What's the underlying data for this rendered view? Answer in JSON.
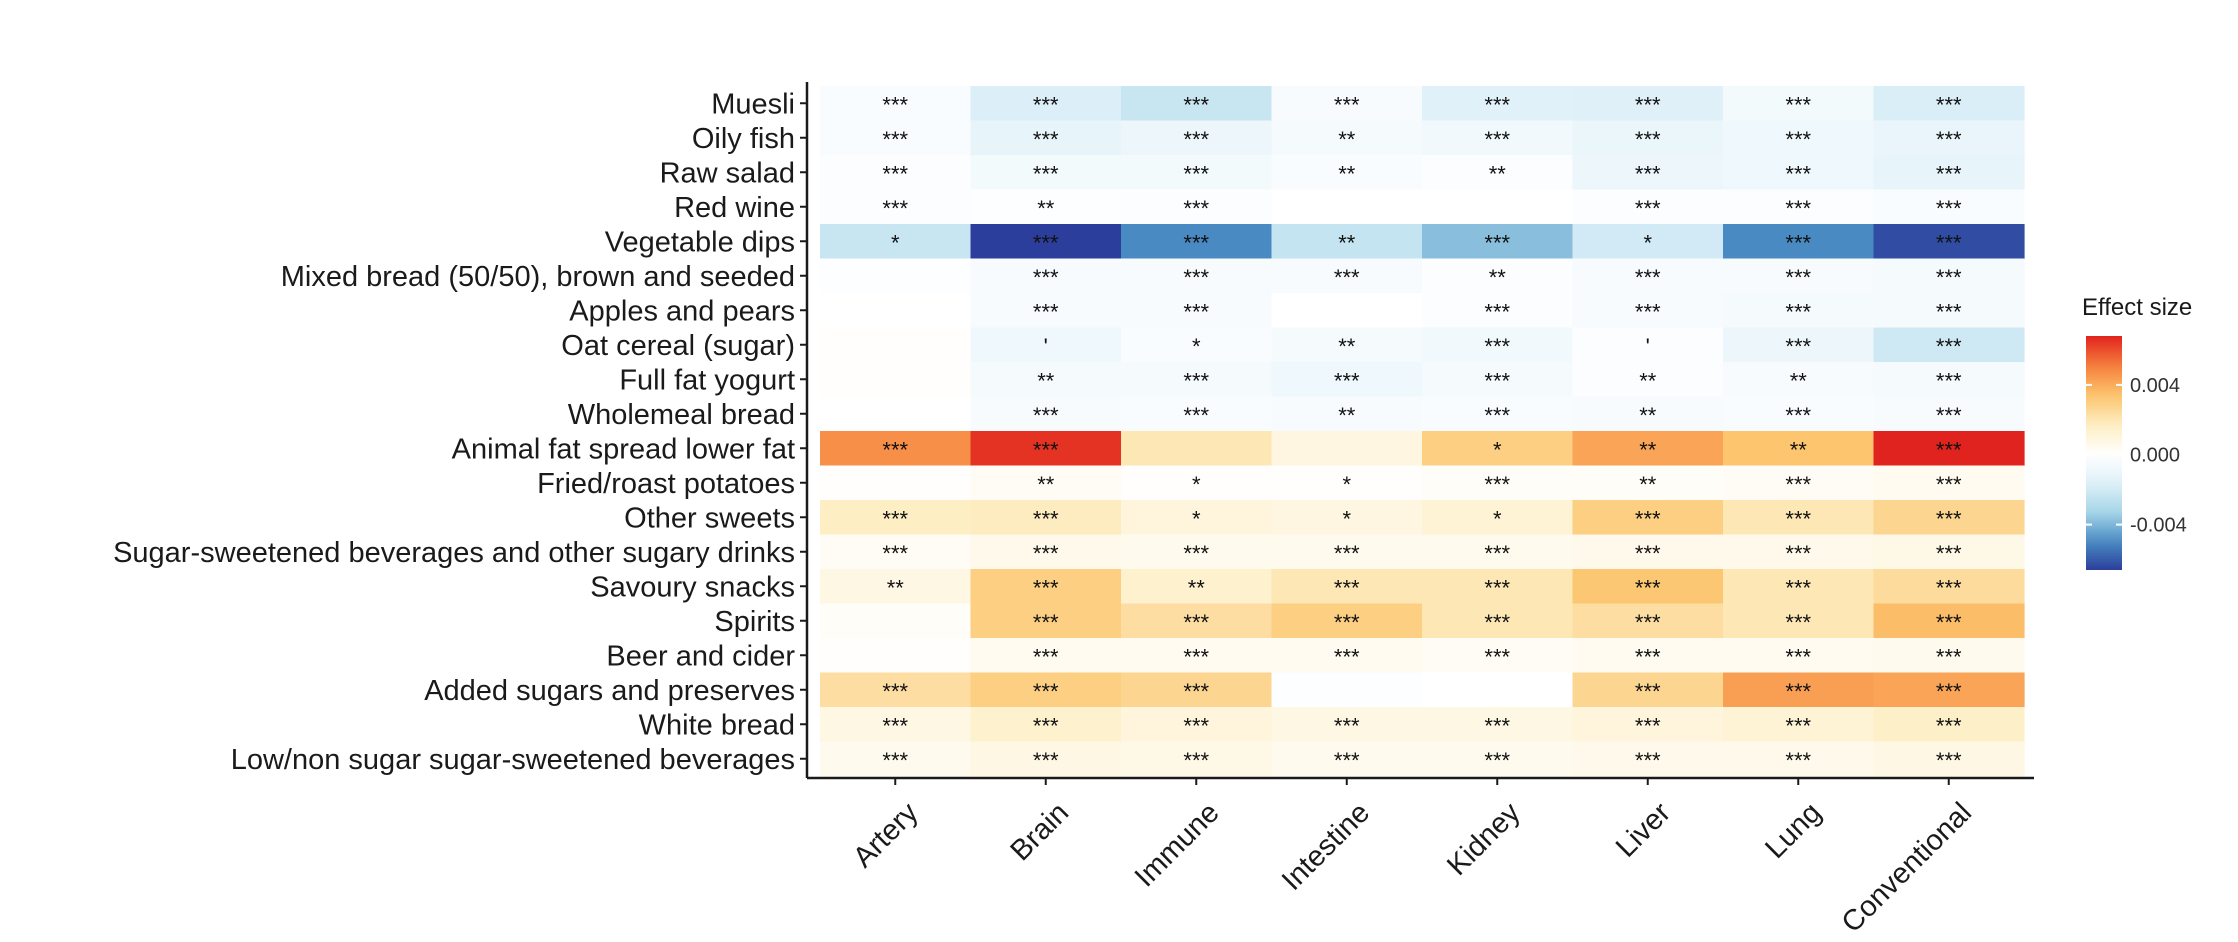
{
  "chart_data": {
    "type": "heatmap",
    "title": "",
    "xlabel": "",
    "ylabel": "",
    "rows": [
      "Muesli",
      "Oily fish",
      "Raw salad",
      "Red wine",
      "Vegetable dips",
      "Mixed bread (50/50), brown and seeded",
      "Apples and pears",
      "Oat cereal (sugar)",
      "Full fat yogurt",
      "Wholemeal bread",
      "Animal fat spread lower fat",
      "Fried/roast potatoes",
      "Other sweets",
      "Sugar-sweetened beverages and other sugary drinks",
      "Savoury snacks",
      "Spirits",
      "Beer and cider",
      "Added sugars and preserves",
      "White bread",
      "Low/non sugar sugar-sweetened beverages"
    ],
    "columns": [
      "Artery",
      "Brain",
      "Immune",
      "Intestine",
      "Kidney",
      "Liver",
      "Lung",
      "Conventional"
    ],
    "values": [
      [
        -0.0003,
        -0.0017,
        -0.0023,
        -0.0004,
        -0.0015,
        -0.0016,
        -0.0006,
        -0.0018
      ],
      [
        -0.0003,
        -0.0012,
        -0.0009,
        -0.0005,
        -0.0007,
        -0.001,
        -0.0008,
        -0.0011
      ],
      [
        -0.0002,
        -0.0006,
        -0.0006,
        -0.0003,
        -0.0002,
        -0.0009,
        -0.0008,
        -0.0012
      ],
      [
        -0.0002,
        -0.0001,
        -0.0002,
        0.0,
        0.0,
        -0.0002,
        -0.0002,
        -0.0003
      ],
      [
        -0.0023,
        -0.0066,
        -0.005,
        -0.0024,
        -0.0038,
        -0.002,
        -0.005,
        -0.0063
      ],
      [
        -0.0001,
        -0.0004,
        -0.0004,
        -0.0004,
        -0.0002,
        -0.0004,
        -0.0004,
        -0.0005
      ],
      [
        0.0,
        -0.0004,
        -0.0004,
        0.0,
        -0.0002,
        -0.0004,
        -0.0005,
        -0.0005
      ],
      [
        0.0001,
        -0.0008,
        -0.0003,
        -0.0005,
        -0.0007,
        -0.0002,
        -0.0009,
        -0.0021
      ],
      [
        0.0001,
        -0.0005,
        -0.0005,
        -0.0008,
        -0.0005,
        -0.0002,
        -0.0004,
        -0.0005
      ],
      [
        0.0,
        -0.0004,
        -0.0003,
        -0.0004,
        -0.0003,
        -0.0004,
        -0.0003,
        -0.0004
      ],
      [
        0.0047,
        0.0065,
        0.002,
        0.0009,
        0.003,
        0.0042,
        0.0034,
        0.0068
      ],
      [
        0.0001,
        0.0003,
        0.0001,
        0.0001,
        0.0002,
        0.0002,
        0.0003,
        0.0004
      ],
      [
        0.0017,
        0.0018,
        0.001,
        0.0009,
        0.0012,
        0.003,
        0.002,
        0.0027
      ],
      [
        0.0003,
        0.0006,
        0.0005,
        0.0005,
        0.0005,
        0.0006,
        0.0006,
        0.0007
      ],
      [
        0.0008,
        0.003,
        0.0014,
        0.002,
        0.002,
        0.0033,
        0.002,
        0.0025
      ],
      [
        0.0002,
        0.003,
        0.0024,
        0.003,
        0.002,
        0.0024,
        0.002,
        0.0036
      ],
      [
        0.0001,
        0.0004,
        0.0004,
        0.0004,
        0.0003,
        0.0004,
        0.0004,
        0.0005
      ],
      [
        0.0024,
        0.003,
        0.0027,
        -0.0001,
        0.0,
        0.0027,
        0.0043,
        0.0042
      ],
      [
        0.0008,
        0.0014,
        0.001,
        0.0008,
        0.0008,
        0.001,
        0.0012,
        0.0016
      ],
      [
        0.0005,
        0.0008,
        0.0007,
        0.0005,
        0.0005,
        0.0006,
        0.0006,
        0.0008
      ]
    ],
    "significance": [
      [
        "***",
        "***",
        "***",
        "***",
        "***",
        "***",
        "***",
        "***"
      ],
      [
        "***",
        "***",
        "***",
        "**",
        "***",
        "***",
        "***",
        "***"
      ],
      [
        "***",
        "***",
        "***",
        "**",
        "**",
        "***",
        "***",
        "***"
      ],
      [
        "***",
        "**",
        "***",
        "",
        "",
        "***",
        "***",
        "***"
      ],
      [
        "*",
        "***",
        "***",
        "**",
        "***",
        "*",
        "***",
        "***"
      ],
      [
        "",
        "***",
        "***",
        "***",
        "**",
        "***",
        "***",
        "***"
      ],
      [
        "",
        "***",
        "***",
        "",
        "***",
        "***",
        "***",
        "***"
      ],
      [
        "",
        "'",
        "*",
        "**",
        "***",
        "'",
        "***",
        "***"
      ],
      [
        "",
        "**",
        "***",
        "***",
        "***",
        "**",
        "**",
        "***"
      ],
      [
        "",
        "***",
        "***",
        "**",
        "***",
        "**",
        "***",
        "***"
      ],
      [
        "***",
        "***",
        "",
        "",
        "*",
        "**",
        "**",
        "***"
      ],
      [
        "",
        "**",
        "*",
        "*",
        "***",
        "**",
        "***",
        "***"
      ],
      [
        "***",
        "***",
        "*",
        "*",
        "*",
        "***",
        "***",
        "***"
      ],
      [
        "***",
        "***",
        "***",
        "***",
        "***",
        "***",
        "***",
        "***"
      ],
      [
        "**",
        "***",
        "**",
        "***",
        "***",
        "***",
        "***",
        "***"
      ],
      [
        "",
        "***",
        "***",
        "***",
        "***",
        "***",
        "***",
        "***"
      ],
      [
        "",
        "***",
        "***",
        "***",
        "***",
        "***",
        "***",
        "***"
      ],
      [
        "***",
        "***",
        "***",
        "",
        "",
        "***",
        "***",
        "***"
      ],
      [
        "***",
        "***",
        "***",
        "***",
        "***",
        "***",
        "***",
        "***"
      ],
      [
        "***",
        "***",
        "***",
        "***",
        "***",
        "***",
        "***",
        "***"
      ]
    ],
    "color_range": [
      -0.0066,
      0.0068
    ],
    "legend": {
      "title": "Effect size",
      "ticks": [
        0.004,
        0.0,
        -0.004
      ],
      "tick_labels": [
        "0.004",
        "0.000",
        "-0.004"
      ],
      "position": "right"
    },
    "colors": {
      "negative_max": "#2c3e9c",
      "neutral": "#ffffff",
      "positive_max": "#e0231e"
    }
  }
}
